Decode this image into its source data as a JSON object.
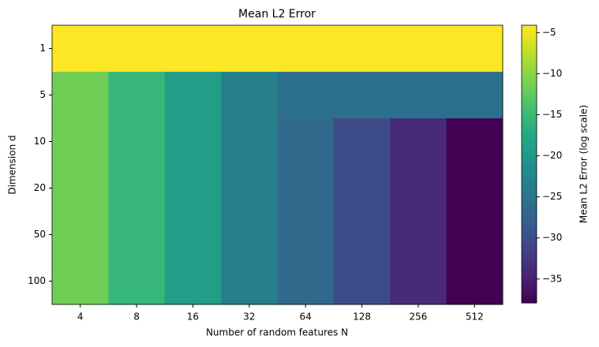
{
  "chart_data": {
    "type": "heatmap",
    "title": "Mean L2 Error",
    "x_label": "Number of random features N",
    "y_label": "Dimension d",
    "x_categories": [
      "4",
      "8",
      "16",
      "32",
      "64",
      "128",
      "256",
      "512"
    ],
    "y_categories": [
      "1",
      "5",
      "10",
      "20",
      "50",
      "100"
    ],
    "values": [
      [
        -4.1,
        -4.1,
        -4.1,
        -4.1,
        -4.1,
        -4.1,
        -4.1,
        -4.1
      ],
      [
        -11.5,
        -15.6,
        -19.3,
        -23.4,
        -25.4,
        -25.4,
        -25.4,
        -25.4
      ],
      [
        -11.5,
        -15.6,
        -19.3,
        -23.4,
        -26.4,
        -30.1,
        -33.8,
        -37.9
      ],
      [
        -11.5,
        -15.6,
        -19.3,
        -23.4,
        -26.4,
        -30.1,
        -33.8,
        -37.9
      ],
      [
        -11.5,
        -15.6,
        -19.3,
        -23.4,
        -26.4,
        -30.1,
        -33.8,
        -37.9
      ],
      [
        -11.5,
        -15.6,
        -19.3,
        -23.4,
        -26.4,
        -30.1,
        -33.8,
        -37.9
      ]
    ],
    "colormap": "viridis",
    "colorbar": {
      "label": "Mean L2 Error (log scale)",
      "lim": [
        -37.9,
        -4.1
      ],
      "ticks": [
        {
          "value": -5,
          "label": "−5"
        },
        {
          "value": -10,
          "label": "−10"
        },
        {
          "value": -15,
          "label": "−15"
        },
        {
          "value": -20,
          "label": "−20"
        },
        {
          "value": -25,
          "label": "−25"
        },
        {
          "value": -30,
          "label": "−30"
        },
        {
          "value": -35,
          "label": "−35"
        }
      ]
    }
  }
}
